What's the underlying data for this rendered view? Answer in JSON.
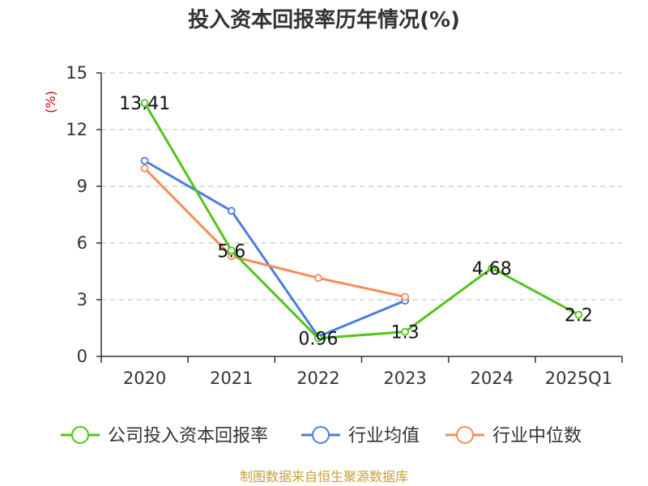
{
  "title": "投入资本回报率历年情况(%)",
  "source": "制图数据来自恒生聚源数据库",
  "chart_data": {
    "type": "line",
    "title": "投入资本回报率历年情况(%)",
    "ylabel": "(%)",
    "ylim": [
      0,
      15
    ],
    "yticks": [
      0,
      3,
      6,
      9,
      12,
      15
    ],
    "grid": true,
    "legend_position": "bottom",
    "categories": [
      "2020",
      "2021",
      "2022",
      "2023",
      "2024",
      "2025Q1"
    ],
    "series": [
      {
        "name": "公司投入资本回报率",
        "color": "#52c41a",
        "values": [
          13.41,
          5.6,
          0.96,
          1.3,
          4.68,
          2.2
        ],
        "labels": [
          "13.41",
          "5.6",
          "0.96",
          "1.3",
          "4.68",
          "2.2"
        ]
      },
      {
        "name": "行业均值",
        "color": "#4a7fdc",
        "values": [
          10.35,
          7.7,
          1.05,
          2.95,
          null,
          null
        ]
      },
      {
        "name": "行业中位数",
        "color": "#f78c5a",
        "values": [
          9.95,
          5.3,
          4.15,
          3.15,
          null,
          null
        ]
      }
    ]
  }
}
